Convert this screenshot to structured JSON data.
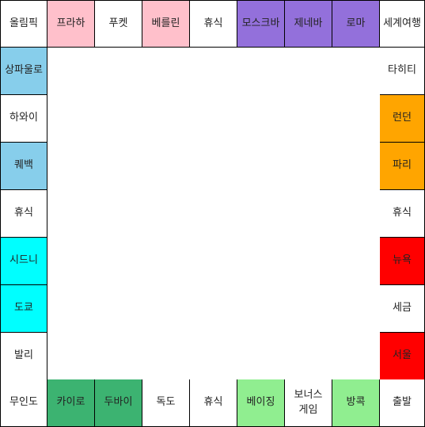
{
  "board": {
    "top": [
      {
        "label": "올림픽",
        "color": "#ffffff"
      },
      {
        "label": "프라하",
        "color": "#ffc0cb"
      },
      {
        "label": "푸켓",
        "color": "#ffffff"
      },
      {
        "label": "베를린",
        "color": "#ffc0cb"
      },
      {
        "label": "휴식",
        "color": "#ffffff"
      },
      {
        "label": "모스크바",
        "color": "#9370db"
      },
      {
        "label": "제네바",
        "color": "#9370db"
      },
      {
        "label": "로마",
        "color": "#9370db"
      },
      {
        "label": "세계여행",
        "color": "#ffffff"
      }
    ],
    "left": [
      {
        "label": "상파울로",
        "color": "#87ceeb"
      },
      {
        "label": "하와이",
        "color": "#ffffff"
      },
      {
        "label": "퀘백",
        "color": "#87ceeb"
      },
      {
        "label": "휴식",
        "color": "#ffffff"
      },
      {
        "label": "시드니",
        "color": "#00ffff"
      },
      {
        "label": "도쿄",
        "color": "#00ffff"
      },
      {
        "label": "발리",
        "color": "#ffffff"
      }
    ],
    "right": [
      {
        "label": "타히티",
        "color": "#ffffff"
      },
      {
        "label": "런던",
        "color": "#ffa500"
      },
      {
        "label": "파리",
        "color": "#ffa500"
      },
      {
        "label": "휴식",
        "color": "#ffffff"
      },
      {
        "label": "뉴욕",
        "color": "#ff0000"
      },
      {
        "label": "세금",
        "color": "#ffffff"
      },
      {
        "label": "서울",
        "color": "#ff0000"
      }
    ],
    "bottom": [
      {
        "label": "무인도",
        "color": "#ffffff"
      },
      {
        "label": "카이로",
        "color": "#3cb371"
      },
      {
        "label": "두바이",
        "color": "#3cb371"
      },
      {
        "label": "독도",
        "color": "#ffffff"
      },
      {
        "label": "휴식",
        "color": "#ffffff"
      },
      {
        "label": "베이징",
        "color": "#90ee90"
      },
      {
        "label": "보너스\n게임",
        "color": "#ffffff"
      },
      {
        "label": "방콕",
        "color": "#90ee90"
      },
      {
        "label": "출발",
        "color": "#ffffff"
      }
    ]
  }
}
